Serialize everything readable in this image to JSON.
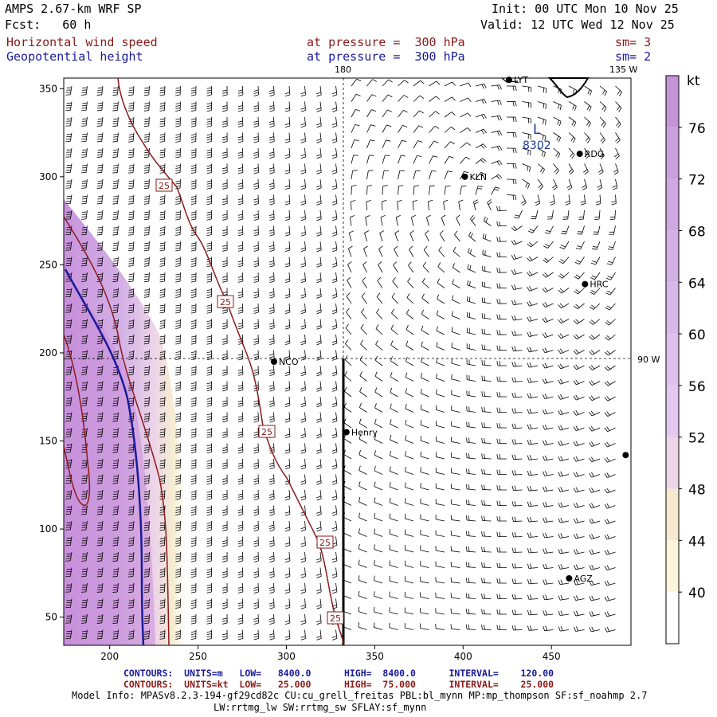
{
  "header": {
    "model": "AMPS 2.67-km WRF SP",
    "fcst": "Fcst:   60 h",
    "init": "Init: 00 UTC Mon 10 Nov 25",
    "valid": "Valid: 12 UTC Wed 12 Nov 25",
    "field1": {
      "name": "Horizontal wind speed",
      "level": "at pressure =  300 hPa",
      "sm": "sm= 3"
    },
    "field2": {
      "name": "Geopotential height",
      "level": "at pressure =  300 hPa",
      "sm": "sm= 2"
    }
  },
  "map": {
    "meridian_180": "180",
    "meridian_135w": "135 W",
    "meridian_90w": "90 W",
    "x_ticks": [
      200,
      250,
      300,
      350,
      400,
      450
    ],
    "y_ticks": [
      50,
      100,
      150,
      200,
      250,
      300,
      350
    ],
    "x_range": [
      174,
      495
    ],
    "y_range": [
      34,
      356
    ],
    "low_label": "L",
    "low_value": "8302",
    "contour_label": "25",
    "stations": [
      {
        "name": "RDG",
        "x": 466,
        "y": 313
      },
      {
        "name": "KLN",
        "x": 401,
        "y": 300
      },
      {
        "name": "HRC",
        "x": 469,
        "y": 239
      },
      {
        "name": "NCO",
        "x": 293,
        "y": 195
      },
      {
        "name": "Henry",
        "x": 334,
        "y": 155
      },
      {
        "name": "AGZ",
        "x": 460,
        "y": 72
      },
      {
        "name": "LYT",
        "x": 426,
        "y": 355
      },
      {
        "name": "",
        "x": 492,
        "y": 142
      }
    ]
  },
  "colorbar": {
    "unit": "kt",
    "labels": [
      "76",
      "72",
      "68",
      "64",
      "60",
      "56",
      "52",
      "48",
      "44",
      "40"
    ],
    "colors": [
      "#c593d8",
      "#c9a0dc",
      "#cfa8e2",
      "#d3b0e6",
      "#d8b8ea",
      "#ddc0ee",
      "#e3c8ef",
      "#edd6e8",
      "#f6e9cf",
      "#fbf5dc",
      "#ffffff"
    ]
  },
  "footer": {
    "c1": "CONTOURS:  UNITS=m   LOW=   8400.0      HIGH=  8400.0      INTERVAL=    120.00",
    "c2": "CONTOURS:  UNITS=kt  LOW=   25.000      HIGH=  75.000      INTERVAL=    25.000",
    "info1": "Model Info: MPASv8.2.3-194-gf29cd82c CU:cu_grell_freitas PBL:bl_mynn MP:mp_thompson SF:sf_noahmp 2.7",
    "info2": "LW:rrtmg_lw SW:rrtmg_sw SFLAY:sf_mynn"
  },
  "colors": {
    "contour_kt": "#8b1a1a",
    "contour_m": "#1a1a9a",
    "label_blue": "#1a3aa0"
  }
}
